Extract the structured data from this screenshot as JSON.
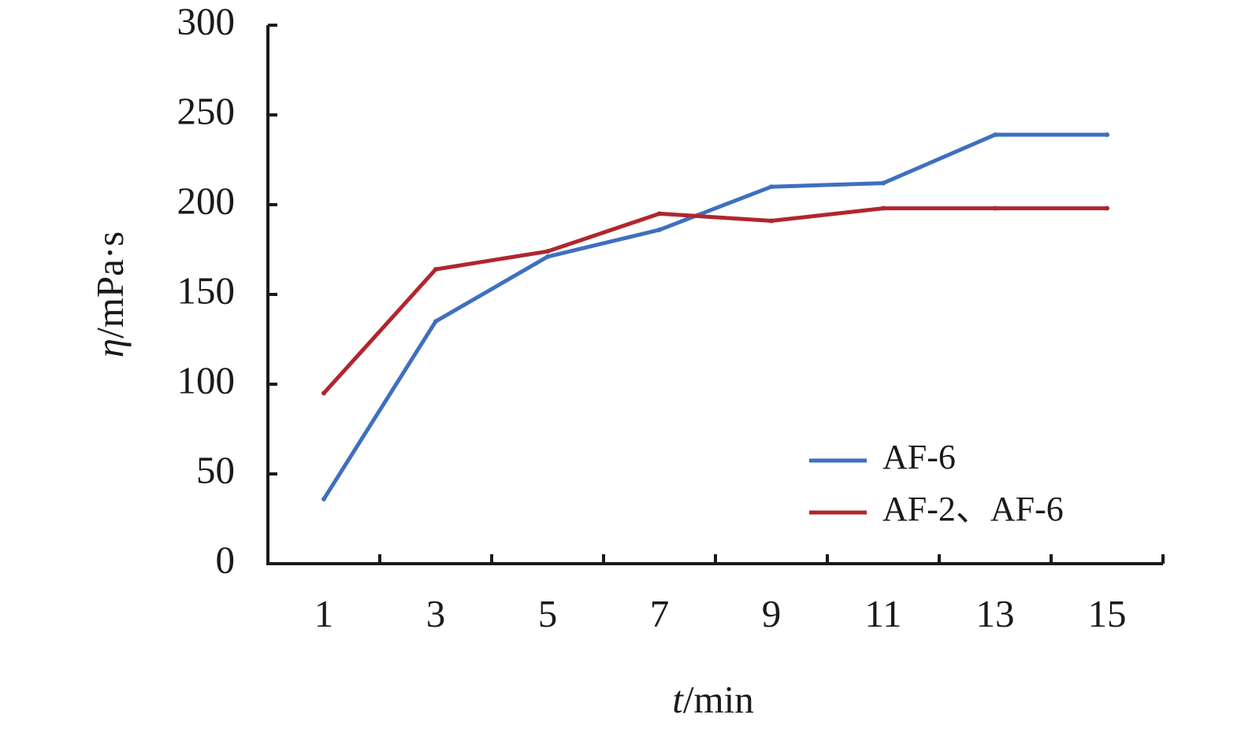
{
  "chart_data": {
    "type": "line",
    "categories": [
      "1",
      "3",
      "5",
      "7",
      "9",
      "11",
      "13",
      "15"
    ],
    "x": [
      1,
      3,
      5,
      7,
      9,
      11,
      13,
      15
    ],
    "series": [
      {
        "name": "AF-6",
        "color": "#3f6fbf",
        "values": [
          36,
          135,
          171,
          186,
          210,
          212,
          239,
          239
        ]
      },
      {
        "name": "AF-2、AF-6",
        "color": "#b0262f",
        "values": [
          95,
          164,
          174,
          195,
          191,
          198,
          198,
          198
        ]
      }
    ],
    "xlabel": {
      "var": "t",
      "unit": "/min"
    },
    "ylabel": {
      "var": "η",
      "unit": "/mPa·s"
    },
    "ylim": [
      0,
      300
    ],
    "yticks": [
      "0",
      "50",
      "100",
      "150",
      "200",
      "250",
      "300"
    ],
    "grid": false,
    "legend_position": "bottom-right"
  }
}
